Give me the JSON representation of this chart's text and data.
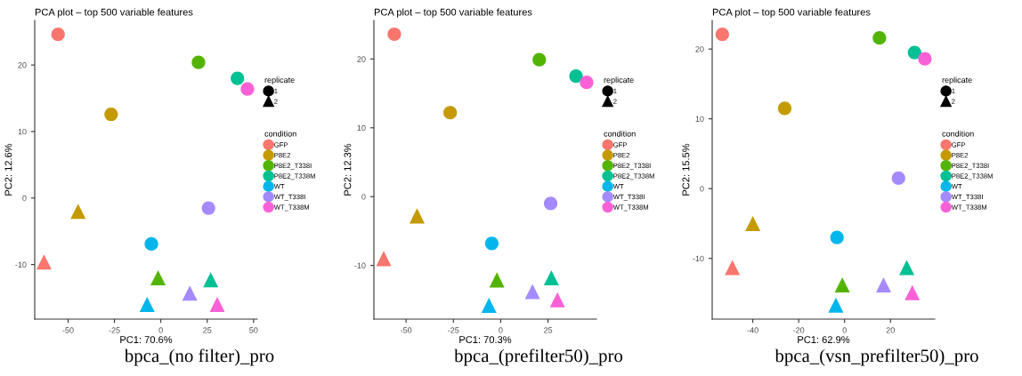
{
  "chart_data": [
    {
      "type": "scatter",
      "title": "PCA plot – top 500 variable features",
      "xlabel": "PC1: 70.6%",
      "ylabel": "PC2: 12.6%",
      "legend_title": "condition",
      "annotations": [
        "replicate",
        "bpca_(no filter)_pro"
      ],
      "legend": "right",
      "grid": false,
      "xlim": [
        -68,
        52
      ],
      "ylim": [
        -18.2,
        26.7
      ],
      "xticks": [
        -50,
        -25,
        0,
        25,
        50
      ],
      "yticks": [
        -10,
        0,
        10,
        20
      ],
      "series": [
        {
          "name": "1",
          "color": "#000000",
          "marker": "circle"
        },
        {
          "name": "2",
          "color": "#000000",
          "marker": "triangle"
        },
        {
          "name": "GFP",
          "color": "#F8766D",
          "marker": [
            "circle",
            "triangle"
          ],
          "x": [
            -55.4,
            -63.0
          ],
          "values": [
            24.6,
            -9.6
          ]
        },
        {
          "name": "P8E2",
          "color": "#C49A00",
          "marker": [
            "circle",
            "triangle"
          ],
          "x": [
            -26.8,
            -44.6
          ],
          "values": [
            12.6,
            -2.0
          ]
        },
        {
          "name": "P8E2_T338I",
          "color": "#53B400",
          "marker": [
            "circle",
            "triangle"
          ],
          "x": [
            20.3,
            -1.5
          ],
          "values": [
            20.4,
            -12.0
          ]
        },
        {
          "name": "P8E2_T338M",
          "color": "#00C094",
          "marker": [
            "circle",
            "triangle"
          ],
          "x": [
            41.3,
            26.9
          ],
          "values": [
            18.0,
            -12.3
          ]
        },
        {
          "name": "WT",
          "color": "#00B6EB",
          "marker": [
            "circle",
            "triangle"
          ],
          "x": [
            -5.1,
            -7.4
          ],
          "values": [
            -6.9,
            -16.0
          ]
        },
        {
          "name": "WT_T338I",
          "color": "#A58AFF",
          "marker": [
            "circle",
            "triangle"
          ],
          "x": [
            25.7,
            15.6
          ],
          "values": [
            -1.5,
            -14.3
          ]
        },
        {
          "name": "WT_T338M",
          "color": "#FB61D7",
          "marker": [
            "circle",
            "triangle"
          ],
          "x": [
            46.7,
            30.4
          ],
          "values": [
            16.4,
            -16.0
          ]
        }
      ]
    },
    {
      "type": "scatter",
      "title": "PCA plot – top 500 variable features",
      "xlabel": "PC1: 70.3%",
      "ylabel": "PC2: 12.3%",
      "legend_title": "condition",
      "annotations": [
        "replicate",
        "bpca_(prefilter50)_pro"
      ],
      "legend": "right",
      "grid": false,
      "xlim": [
        -67,
        50.6
      ],
      "ylim": [
        -17.8,
        25.6
      ],
      "xticks": [
        -50,
        -25,
        0,
        25
      ],
      "yticks": [
        -10,
        0,
        10,
        20
      ],
      "series": [
        {
          "name": "1",
          "color": "#000000",
          "marker": "circle"
        },
        {
          "name": "2",
          "color": "#000000",
          "marker": "triangle"
        },
        {
          "name": "GFP",
          "color": "#F8766D",
          "marker": [
            "circle",
            "triangle"
          ],
          "x": [
            -56.2,
            -61.8
          ],
          "values": [
            23.6,
            -9.0
          ]
        },
        {
          "name": "P8E2",
          "color": "#C49A00",
          "marker": [
            "circle",
            "triangle"
          ],
          "x": [
            -26.7,
            -44.2
          ],
          "values": [
            12.2,
            -2.8
          ]
        },
        {
          "name": "P8E2_T338I",
          "color": "#53B400",
          "marker": [
            "circle",
            "triangle"
          ],
          "x": [
            20.4,
            -2.0
          ],
          "values": [
            19.9,
            -12.1
          ]
        },
        {
          "name": "P8E2_T338M",
          "color": "#00C094",
          "marker": [
            "circle",
            "triangle"
          ],
          "x": [
            39.8,
            26.8
          ],
          "values": [
            17.5,
            -11.8
          ]
        },
        {
          "name": "WT",
          "color": "#00B6EB",
          "marker": [
            "circle",
            "triangle"
          ],
          "x": [
            -4.7,
            -6.2
          ],
          "values": [
            -6.8,
            -15.8
          ]
        },
        {
          "name": "WT_T338I",
          "color": "#A58AFF",
          "marker": [
            "circle",
            "triangle"
          ],
          "x": [
            26.4,
            16.8
          ],
          "values": [
            -1.0,
            -13.8
          ]
        },
        {
          "name": "WT_T338M",
          "color": "#FB61D7",
          "marker": [
            "circle",
            "triangle"
          ],
          "x": [
            45.4,
            30.0
          ],
          "values": [
            16.6,
            -15.0
          ]
        }
      ]
    },
    {
      "type": "scatter",
      "title": "PCA plot – top 500 variable features",
      "xlabel": "PC1: 62.9%",
      "ylabel": "PC2: 15.5%",
      "legend_title": "condition",
      "annotations": [
        "replicate",
        "bpca_(vsn_prefilter50)_pro"
      ],
      "legend": "right",
      "grid": false,
      "xlim": [
        -57.7,
        39.3
      ],
      "ylim": [
        -18.7,
        24.1
      ],
      "xticks": [
        -40,
        -20,
        0,
        20
      ],
      "yticks": [
        -10,
        0,
        10,
        20
      ],
      "series": [
        {
          "name": "1",
          "color": "#000000",
          "marker": "circle"
        },
        {
          "name": "2",
          "color": "#000000",
          "marker": "triangle"
        },
        {
          "name": "GFP",
          "color": "#F8766D",
          "marker": [
            "circle",
            "triangle"
          ],
          "x": [
            -53.3,
            -48.9
          ],
          "values": [
            22.1,
            -11.3
          ]
        },
        {
          "name": "P8E2",
          "color": "#C49A00",
          "marker": [
            "circle",
            "triangle"
          ],
          "x": [
            -26.1,
            -40.0
          ],
          "values": [
            11.5,
            -5.0
          ]
        },
        {
          "name": "P8E2_T338I",
          "color": "#53B400",
          "marker": [
            "circle",
            "triangle"
          ],
          "x": [
            15.2,
            -1.0
          ],
          "values": [
            21.6,
            -13.8
          ]
        },
        {
          "name": "P8E2_T338M",
          "color": "#00C094",
          "marker": [
            "circle",
            "triangle"
          ],
          "x": [
            30.5,
            27.1
          ],
          "values": [
            19.5,
            -11.3
          ]
        },
        {
          "name": "WT",
          "color": "#00B6EB",
          "marker": [
            "circle",
            "triangle"
          ],
          "x": [
            -3.3,
            -3.8
          ],
          "values": [
            -7.0,
            -16.7
          ]
        },
        {
          "name": "WT_T338I",
          "color": "#A58AFF",
          "marker": [
            "circle",
            "triangle"
          ],
          "x": [
            23.5,
            17.0
          ],
          "values": [
            1.5,
            -13.8
          ]
        },
        {
          "name": "WT_T338M",
          "color": "#FB61D7",
          "marker": [
            "circle",
            "triangle"
          ],
          "x": [
            35.0,
            29.5
          ],
          "values": [
            18.6,
            -14.9
          ]
        }
      ]
    }
  ]
}
